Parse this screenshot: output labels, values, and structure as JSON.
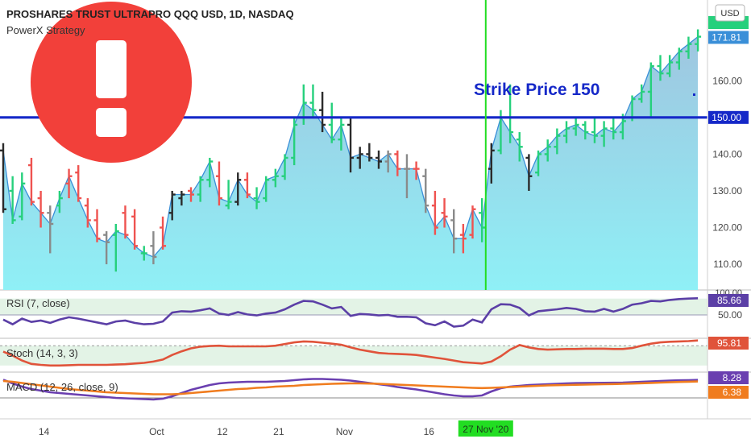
{
  "header": {
    "title": "PROSHARES TRUST ULTRAPRO QQQ USD, 1D, NASDAQ",
    "indicator_name": "PowerX Strategy",
    "currency_button": "USD"
  },
  "annotation": {
    "text": "Strike Price 150",
    "level": 150
  },
  "colors": {
    "bull": "#26d07c",
    "bear": "#ef5350",
    "neutral_dark": "#2b2b2b",
    "neutral_gray": "#8a8a8a",
    "area_line": "#3a8fd8",
    "strike_line": "#1528c8",
    "vertical_marker": "#22dd22",
    "rsi_line": "#5b3fa6",
    "stoch_line": "#e0533a",
    "macd_line": "#6a3fb0",
    "signal_line": "#f07c1e"
  },
  "chart_data": [
    {
      "type": "ohlc",
      "title": "PROSHARES TRUST ULTRAPRO QQQ USD, 1D, NASDAQ",
      "ylim": [
        103,
        182
      ],
      "y_ticks": [
        110,
        120,
        130,
        140,
        150,
        160
      ],
      "price_labels": [
        {
          "value": 171.81,
          "text": "171.81"
        },
        {
          "value": 150.0,
          "text": "150.00"
        }
      ],
      "x_tick_labels": [
        {
          "index": 4,
          "text": "14"
        },
        {
          "index": 16,
          "text": "Oct"
        },
        {
          "index": 23,
          "text": "12"
        },
        {
          "index": 29,
          "text": "21"
        },
        {
          "index": 36,
          "text": "Nov"
        },
        {
          "index": 45,
          "text": "16"
        },
        {
          "index": 52,
          "text": "27 Nov '20"
        }
      ],
      "vertical_marker_index": 52,
      "bars": [
        {
          "o": 141,
          "h": 143,
          "l": 124,
          "c": 125,
          "color": "neutral_dark"
        },
        {
          "o": 130,
          "h": 134,
          "l": 121,
          "c": 122,
          "color": "bull"
        },
        {
          "o": 123,
          "h": 135,
          "l": 122,
          "c": 132,
          "color": "bull"
        },
        {
          "o": 137,
          "h": 139,
          "l": 126,
          "c": 127,
          "color": "bear"
        },
        {
          "o": 128,
          "h": 130,
          "l": 120,
          "c": 124,
          "color": "bear"
        },
        {
          "o": 124,
          "h": 126,
          "l": 113,
          "c": 121,
          "color": "neutral_gray"
        },
        {
          "o": 126,
          "h": 130,
          "l": 124,
          "c": 128,
          "color": "bull"
        },
        {
          "o": 132,
          "h": 136,
          "l": 128,
          "c": 134,
          "color": "bear"
        },
        {
          "o": 135,
          "h": 137,
          "l": 127,
          "c": 128,
          "color": "bear"
        },
        {
          "o": 126,
          "h": 128,
          "l": 120,
          "c": 122,
          "color": "bear"
        },
        {
          "o": 122,
          "h": 125,
          "l": 116,
          "c": 117,
          "color": "bear"
        },
        {
          "o": 118,
          "h": 119,
          "l": 110,
          "c": 116,
          "color": "neutral_gray"
        },
        {
          "o": 118,
          "h": 121,
          "l": 108,
          "c": 119,
          "color": "bull"
        },
        {
          "o": 124,
          "h": 126,
          "l": 117,
          "c": 118,
          "color": "bear"
        },
        {
          "o": 123,
          "h": 125,
          "l": 114,
          "c": 115,
          "color": "bear"
        },
        {
          "o": 113,
          "h": 115,
          "l": 111,
          "c": 113,
          "color": "bull"
        },
        {
          "o": 115,
          "h": 119,
          "l": 110,
          "c": 112,
          "color": "neutral_gray"
        },
        {
          "o": 120,
          "h": 123,
          "l": 114,
          "c": 115,
          "color": "bear"
        },
        {
          "o": 124,
          "h": 130,
          "l": 122,
          "c": 129,
          "color": "neutral_dark"
        },
        {
          "o": 128,
          "h": 130,
          "l": 126,
          "c": 129,
          "color": "neutral_dark"
        },
        {
          "o": 130,
          "h": 131,
          "l": 127,
          "c": 129,
          "color": "bear"
        },
        {
          "o": 129,
          "h": 134,
          "l": 127,
          "c": 133,
          "color": "bull"
        },
        {
          "o": 133,
          "h": 139,
          "l": 131,
          "c": 138,
          "color": "bull"
        },
        {
          "o": 134,
          "h": 138,
          "l": 126,
          "c": 128,
          "color": "bear"
        },
        {
          "o": 126,
          "h": 133,
          "l": 125,
          "c": 127,
          "color": "bull"
        },
        {
          "o": 127,
          "h": 135,
          "l": 126,
          "c": 133,
          "color": "neutral_dark"
        },
        {
          "o": 133,
          "h": 135,
          "l": 128,
          "c": 129,
          "color": "bear"
        },
        {
          "o": 128,
          "h": 131,
          "l": 125,
          "c": 127,
          "color": "bull"
        },
        {
          "o": 128,
          "h": 134,
          "l": 127,
          "c": 133,
          "color": "bull"
        },
        {
          "o": 133,
          "h": 136,
          "l": 131,
          "c": 134,
          "color": "bull"
        },
        {
          "o": 134,
          "h": 140,
          "l": 133,
          "c": 139,
          "color": "bull"
        },
        {
          "o": 139,
          "h": 150,
          "l": 137,
          "c": 148,
          "color": "bull"
        },
        {
          "o": 150,
          "h": 159,
          "l": 148,
          "c": 154,
          "color": "bull"
        },
        {
          "o": 154,
          "h": 159,
          "l": 150,
          "c": 152,
          "color": "bull"
        },
        {
          "o": 152,
          "h": 157,
          "l": 146,
          "c": 148,
          "color": "neutral_dark"
        },
        {
          "o": 148,
          "h": 154,
          "l": 143,
          "c": 144,
          "color": "bull"
        },
        {
          "o": 144,
          "h": 150,
          "l": 141,
          "c": 148,
          "color": "bull"
        },
        {
          "o": 148,
          "h": 150,
          "l": 135,
          "c": 139,
          "color": "neutral_dark"
        },
        {
          "o": 139,
          "h": 142,
          "l": 136,
          "c": 140,
          "color": "neutral_dark"
        },
        {
          "o": 140,
          "h": 143,
          "l": 138,
          "c": 139,
          "color": "neutral_dark"
        },
        {
          "o": 139,
          "h": 141,
          "l": 136,
          "c": 138,
          "color": "neutral_dark"
        },
        {
          "o": 138,
          "h": 141,
          "l": 135,
          "c": 140,
          "color": "neutral_gray"
        },
        {
          "o": 140,
          "h": 141,
          "l": 134,
          "c": 136,
          "color": "bear"
        },
        {
          "o": 136,
          "h": 140,
          "l": 128,
          "c": 136,
          "color": "neutral_gray"
        },
        {
          "o": 136,
          "h": 138,
          "l": 133,
          "c": 136,
          "color": "bear"
        },
        {
          "o": 134,
          "h": 136,
          "l": 124,
          "c": 126,
          "color": "neutral_gray"
        },
        {
          "o": 126,
          "h": 130,
          "l": 118,
          "c": 120,
          "color": "bear"
        },
        {
          "o": 124,
          "h": 128,
          "l": 120,
          "c": 123,
          "color": "bear"
        },
        {
          "o": 122,
          "h": 125,
          "l": 113,
          "c": 117,
          "color": "neutral_gray"
        },
        {
          "o": 118,
          "h": 121,
          "l": 113,
          "c": 117,
          "color": "bear"
        },
        {
          "o": 118,
          "h": 126,
          "l": 117,
          "c": 125,
          "color": "bear"
        },
        {
          "o": 124,
          "h": 128,
          "l": 116,
          "c": 120,
          "color": "bull"
        },
        {
          "o": 136,
          "h": 143,
          "l": 132,
          "c": 141,
          "color": "neutral_dark"
        },
        {
          "o": 141,
          "h": 152,
          "l": 140,
          "c": 150,
          "color": "bull"
        },
        {
          "o": 150,
          "h": 159,
          "l": 143,
          "c": 146,
          "color": "bull"
        },
        {
          "o": 144,
          "h": 146,
          "l": 138,
          "c": 142,
          "color": "bull"
        },
        {
          "o": 139,
          "h": 140,
          "l": 130,
          "c": 134,
          "color": "neutral_dark"
        },
        {
          "o": 135,
          "h": 141,
          "l": 134,
          "c": 140,
          "color": "bull"
        },
        {
          "o": 140,
          "h": 144,
          "l": 138,
          "c": 142,
          "color": "bull"
        },
        {
          "o": 142,
          "h": 147,
          "l": 140,
          "c": 145,
          "color": "bull"
        },
        {
          "o": 145,
          "h": 149,
          "l": 143,
          "c": 147,
          "color": "bull"
        },
        {
          "o": 147,
          "h": 150,
          "l": 145,
          "c": 148,
          "color": "bull"
        },
        {
          "o": 148,
          "h": 149,
          "l": 144,
          "c": 146,
          "color": "bull"
        },
        {
          "o": 146,
          "h": 150,
          "l": 143,
          "c": 145,
          "color": "bull"
        },
        {
          "o": 145,
          "h": 149,
          "l": 142,
          "c": 147,
          "color": "bull"
        },
        {
          "o": 147,
          "h": 150,
          "l": 144,
          "c": 146,
          "color": "bull"
        },
        {
          "o": 146,
          "h": 151,
          "l": 144,
          "c": 149,
          "color": "bull"
        },
        {
          "o": 150,
          "h": 156,
          "l": 149,
          "c": 155,
          "color": "bull"
        },
        {
          "o": 155,
          "h": 159,
          "l": 154,
          "c": 157,
          "color": "bull"
        },
        {
          "o": 157,
          "h": 165,
          "l": 150,
          "c": 164,
          "color": "bull"
        },
        {
          "o": 164,
          "h": 167,
          "l": 160,
          "c": 162,
          "color": "bull"
        },
        {
          "o": 162,
          "h": 167,
          "l": 161,
          "c": 165,
          "color": "bull"
        },
        {
          "o": 165,
          "h": 169,
          "l": 163,
          "c": 168,
          "color": "bull"
        },
        {
          "o": 168,
          "h": 172,
          "l": 166,
          "c": 170,
          "color": "bull"
        },
        {
          "o": 170,
          "h": 174,
          "l": 168,
          "c": 172,
          "color": "bull"
        }
      ],
      "area_close": [
        141,
        122,
        132,
        127,
        124,
        121,
        128,
        134,
        128,
        122,
        117,
        116,
        119,
        118,
        115,
        113,
        112,
        115,
        129,
        129,
        129,
        133,
        138,
        128,
        127,
        133,
        129,
        127,
        133,
        134,
        139,
        148,
        154,
        152,
        148,
        144,
        148,
        139,
        140,
        139,
        138,
        140,
        136,
        136,
        136,
        126,
        120,
        123,
        117,
        117,
        125,
        120,
        141,
        150,
        146,
        142,
        134,
        140,
        142,
        145,
        147,
        148,
        146,
        145,
        147,
        146,
        149,
        155,
        157,
        164,
        162,
        165,
        168,
        170,
        172
      ]
    },
    {
      "type": "line",
      "title": "RSI (7, close)",
      "ylim": [
        0,
        100
      ],
      "level_labels": [
        {
          "value": 50,
          "text": "50.00"
        },
        {
          "value": 100,
          "text": "100.00"
        }
      ],
      "last_label": "85.66",
      "values": [
        40,
        30,
        42,
        35,
        38,
        33,
        40,
        45,
        42,
        38,
        34,
        30,
        36,
        38,
        33,
        30,
        31,
        36,
        55,
        58,
        57,
        60,
        64,
        53,
        50,
        56,
        51,
        49,
        53,
        55,
        62,
        72,
        80,
        79,
        72,
        64,
        67,
        48,
        52,
        51,
        49,
        50,
        46,
        46,
        45,
        32,
        28,
        36,
        25,
        27,
        40,
        34,
        62,
        73,
        72,
        65,
        49,
        58,
        60,
        62,
        65,
        63,
        58,
        57,
        63,
        57,
        63,
        72,
        75,
        80,
        79,
        82,
        84,
        85,
        85.66
      ]
    },
    {
      "type": "line",
      "title": "Stoch (14, 3, 3)",
      "ylim": [
        0,
        100
      ],
      "last_label": "95.81",
      "values": [
        62,
        50,
        35,
        25,
        22,
        20,
        20,
        21,
        22,
        22,
        22,
        22,
        23,
        24,
        26,
        28,
        32,
        38,
        52,
        63,
        72,
        77,
        79,
        80,
        78,
        78,
        78,
        78,
        78,
        80,
        85,
        90,
        93,
        92,
        89,
        86,
        83,
        75,
        68,
        63,
        58,
        56,
        55,
        54,
        52,
        48,
        44,
        40,
        35,
        30,
        28,
        26,
        32,
        48,
        68,
        82,
        75,
        70,
        68,
        69,
        70,
        70,
        71,
        71,
        71,
        70,
        70,
        73,
        80,
        86,
        90,
        92,
        93,
        94,
        95.81
      ]
    },
    {
      "type": "line",
      "title": "MACD (12, 26, close, 9)",
      "last_labels": [
        "8.28",
        "6.38"
      ],
      "series": [
        {
          "name": "macd",
          "values": [
            8.5,
            4,
            0,
            -3,
            -5,
            -7,
            -8,
            -9,
            -10,
            -11,
            -12,
            -13,
            -14,
            -14.5,
            -15,
            -15.5,
            -16,
            -15,
            -12,
            -8,
            -4,
            -1,
            2,
            4,
            5,
            5.5,
            6,
            6,
            6,
            6.5,
            7,
            8,
            9,
            9.5,
            9.5,
            9,
            8.5,
            7.5,
            6,
            4.5,
            3,
            1.5,
            -0.5,
            -2,
            -3.5,
            -5.5,
            -7.5,
            -9.5,
            -11,
            -12,
            -12,
            -11,
            -6,
            -2,
            0,
            1,
            2,
            2.5,
            3,
            3.5,
            4,
            4.3,
            4.5,
            4.6,
            4.7,
            4.8,
            5,
            5.5,
            6,
            6.5,
            7,
            7.4,
            7.8,
            8,
            8.28
          ]
        },
        {
          "name": "signal",
          "values": [
            7,
            6,
            4.5,
            3,
            1.5,
            0,
            -1.5,
            -3,
            -4,
            -5,
            -6,
            -7,
            -7.5,
            -8,
            -8.5,
            -9,
            -9.5,
            -9.5,
            -9.5,
            -9,
            -8,
            -7,
            -6,
            -5,
            -4,
            -3,
            -2.5,
            -1.5,
            -1,
            0,
            0.5,
            1,
            2,
            2.5,
            3,
            3.5,
            3.8,
            4,
            4,
            3.8,
            3.5,
            3,
            2.5,
            2,
            1.5,
            1,
            0.5,
            0,
            -0.5,
            -1,
            -1.5,
            -1.8,
            -1.5,
            -1,
            -0.5,
            0,
            0.5,
            1,
            1.5,
            1.8,
            2,
            2.3,
            2.5,
            2.8,
            3,
            3.2,
            3.5,
            3.8,
            4.2,
            4.6,
            5,
            5.4,
            5.8,
            6.1,
            6.38
          ]
        }
      ]
    }
  ]
}
